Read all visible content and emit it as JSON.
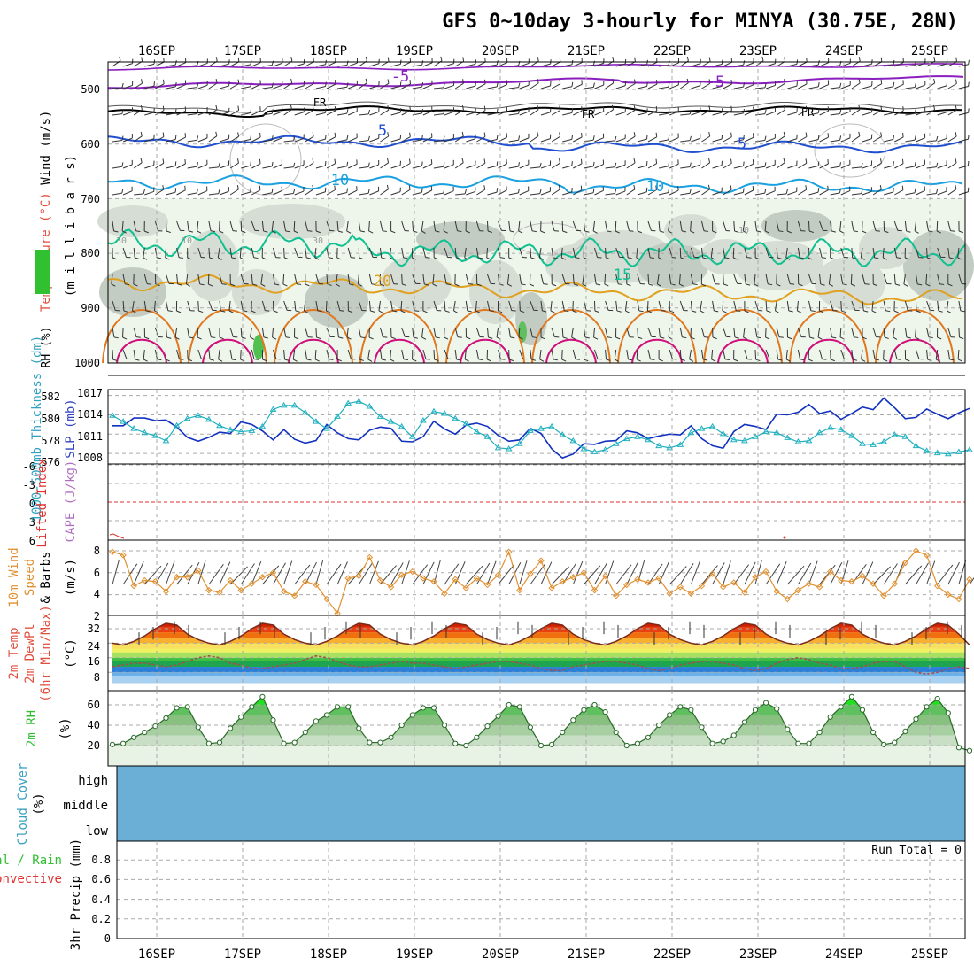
{
  "title": "GFS 0~10day 3-hourly for MINYA (30.75E, 28N)",
  "dates": [
    "16SEP",
    "17SEP",
    "18SEP",
    "19SEP",
    "20SEP",
    "21SEP",
    "22SEP",
    "23SEP",
    "24SEP",
    "25SEP"
  ],
  "colors": {
    "purple": "#8a1fbf",
    "black": "#000000",
    "blue": "#2050d0",
    "lightblue": "#1aa0e0",
    "teal": "#10c090",
    "orange20": "#e0a020",
    "orange25": "#e07820",
    "magenta": "#d0107a",
    "slp": "#1030c0",
    "thick": "#20b0c0",
    "wind10": "#e09030",
    "lifted": "#e03030",
    "cape": "#c080d0",
    "rh2": "#30c030",
    "cloud": "#6baed6"
  },
  "panels": {
    "upper": {
      "ylabel_parts": [
        "Wind (m/s)",
        "Temperature (°C)",
        "RH (%)"
      ],
      "ylabel_right": "(m i l l i b a r s)",
      "yticks": [
        "500",
        "600",
        "700",
        "800",
        "900",
        "1000"
      ],
      "contour_labels": [
        "-5",
        "-5",
        "FR",
        "FR",
        "FR",
        "5",
        "5",
        "10",
        "10",
        "15",
        "20",
        "30",
        "30",
        "30",
        "10",
        "10"
      ]
    },
    "slp": {
      "ylabel_left": "1000-500mb Thickness (dm)",
      "ylabel_right": "SLP (mb)",
      "left_ticks": [
        "582",
        "580",
        "578",
        "576"
      ],
      "right_ticks": [
        "1017",
        "1014",
        "1011",
        "1008"
      ]
    },
    "lifted": {
      "ylabel_left": "Lifted Index",
      "ylabel_right": "CAPE (J/kg)",
      "ticks": [
        "-6",
        "-3",
        "0",
        "3",
        "6"
      ]
    },
    "wind": {
      "ylabel_lines": [
        "10m Wind",
        "Speed",
        "& Barbs"
      ],
      "units": "(m/s)",
      "ticks": [
        "8",
        "6",
        "4",
        "2"
      ]
    },
    "temp": {
      "ylabel_lines": [
        "2m Temp",
        "2m DewPt",
        "(6hr Min/Max)"
      ],
      "units": "(°C)",
      "ticks": [
        "32",
        "24",
        "16",
        "8"
      ]
    },
    "rh": {
      "ylabel": "2m RH",
      "units": "(%)",
      "ticks": [
        "60",
        "40",
        "20"
      ]
    },
    "cloud": {
      "ylabel": "Cloud Cover",
      "units": "(%)",
      "levels": [
        "high",
        "middle",
        "low"
      ]
    },
    "precip": {
      "ylabel_lines": [
        "Total / Rain",
        "Convective"
      ],
      "units": "3hr Precip (mm)",
      "ticks": [
        "0.8",
        "0.6",
        "0.4",
        "0.2",
        "0"
      ],
      "run_total": "Run Total = 0"
    }
  },
  "chart_data": [
    {
      "type": "line",
      "title": "Sea Level Pressure / 1000-500mb Thickness",
      "x": "3-hourly steps from 15SEP 12Z (81 steps)",
      "series": [
        {
          "name": "SLP (mb)",
          "axis": [
            1006.5,
            1017.5
          ],
          "values": [
            1012.3,
            1012.3,
            1013.5,
            1013.5,
            1013.1,
            1013.2,
            1012.1,
            1010.5,
            1009.9,
            1010.5,
            1011.3,
            1011.1,
            1012.9,
            1012.5,
            1011.5,
            1010.1,
            1011.7,
            1010.2,
            1009.6,
            1010.0,
            1012.5,
            1011.2,
            1010.3,
            1010.1,
            1011.6,
            1012.1,
            1011.9,
            1009.9,
            1009.8,
            1010.6,
            1013.0,
            1011.8,
            1011.0,
            1012.4,
            1012.7,
            1012.2,
            1010.8,
            1009.9,
            1010.1,
            1011.9,
            1011.1,
            1008.7,
            1007.3,
            1007.9,
            1009.5,
            1009.4,
            1009.9,
            1010.0,
            1011.5,
            1011.2,
            1010.3,
            1010.7,
            1011.0,
            1010.9,
            1012.3,
            1010.3,
            1009.2,
            1008.8,
            1011.4,
            1012.5,
            1012.2,
            1011.7,
            1014.1,
            1014.0,
            1014.4,
            1015.6,
            1014.2,
            1014.6,
            1013.3,
            1014.2,
            1015.2,
            1014.8,
            1016.6,
            1015.1,
            1013.4,
            1013.6,
            1014.9,
            1014.1,
            1013.4,
            1014.3,
            1015.0
          ]
        },
        {
          "name": "1000-500mb Thickness (dm)",
          "axis": [
            575.5,
            582.5
          ],
          "values": [
            580.2,
            579.6,
            578.9,
            578.5,
            578.2,
            577.7,
            579.2,
            579.9,
            580.2,
            579.8,
            579.2,
            578.8,
            578.6,
            578.7,
            579.1,
            580.8,
            581.2,
            581.2,
            580.5,
            579.6,
            578.9,
            580.1,
            581.4,
            581.6,
            581.1,
            580.1,
            579.6,
            579.1,
            578.1,
            579.7,
            580.6,
            580.4,
            579.9,
            579.4,
            578.6,
            578.1,
            577.0,
            576.9,
            577.4,
            578.7,
            578.9,
            579.1,
            578.3,
            577.7,
            576.9,
            576.6,
            576.8,
            577.4,
            577.9,
            578.1,
            577.8,
            577.2,
            577.0,
            577.3,
            578.5,
            578.9,
            579.1,
            578.4,
            577.8,
            577.7,
            578.1,
            578.6,
            578.5,
            578.0,
            577.6,
            577.7,
            578.5,
            579.0,
            578.8,
            578.2,
            577.4,
            577.3,
            577.6,
            578.3,
            578.1,
            577.2,
            576.7,
            576.5,
            576.4,
            576.6,
            576.8
          ]
        }
      ]
    },
    {
      "type": "line",
      "title": "10m Wind Speed",
      "ylim": [
        2,
        8.5
      ],
      "series": [
        {
          "name": "10m wind (m/s)",
          "values": [
            7.9,
            7.6,
            4.8,
            5.3,
            5.2,
            4.3,
            5.6,
            5.6,
            6.2,
            4.4,
            4.2,
            5.3,
            4.4,
            5.0,
            5.6,
            6.0,
            4.3,
            3.9,
            5.2,
            4.9,
            3.6,
            2.3,
            5.5,
            5.7,
            7.4,
            5.3,
            4.7,
            5.8,
            6.1,
            5.5,
            5.2,
            4.1,
            5.4,
            4.6,
            5.5,
            4.9,
            5.8,
            7.9,
            4.4,
            5.9,
            7.1,
            4.6,
            5.2,
            5.6,
            6.0,
            4.4,
            5.7,
            3.9,
            4.9,
            5.4,
            5.1,
            5.5,
            4.1,
            4.7,
            4.1,
            4.8,
            5.9,
            4.7,
            5.1,
            4.2,
            5.6,
            6.1,
            4.3,
            3.6,
            4.4,
            5.0,
            4.7,
            6.1,
            5.3,
            5.2,
            5.7,
            5.0,
            3.9,
            5.0,
            6.9,
            8.0,
            7.6,
            4.8,
            4.0,
            3.6,
            5.4
          ]
        }
      ]
    },
    {
      "type": "area",
      "title": "2m Temperature / Dew Point",
      "ylim": [
        2,
        38
      ],
      "series": [
        {
          "name": "2m Temp (°C)",
          "values": [
            24,
            23,
            25,
            28,
            32,
            35,
            34,
            29,
            26,
            24,
            23,
            25,
            28,
            32,
            35,
            34,
            29,
            26,
            24,
            23,
            25,
            28,
            32,
            35,
            34,
            29,
            26,
            24,
            23,
            25,
            28,
            32,
            35,
            34,
            29,
            26,
            24,
            23,
            25,
            28,
            32,
            35,
            34,
            29,
            26,
            24,
            23,
            25,
            28,
            32,
            35,
            34,
            29,
            26,
            24,
            23,
            25,
            28,
            32,
            35,
            34,
            29,
            26,
            24,
            23,
            25,
            28,
            32,
            35,
            34,
            29,
            26,
            24,
            23,
            25,
            28,
            32,
            35,
            34,
            29,
            23
          ]
        },
        {
          "name": "2m DewPt (°C)",
          "values": [
            11,
            12,
            13,
            13,
            12,
            11,
            12,
            14,
            16,
            17,
            16,
            13,
            12,
            10,
            10,
            11,
            12,
            13,
            15,
            17,
            16,
            14,
            12,
            11,
            11,
            12,
            13,
            14,
            13,
            13,
            12,
            11,
            10,
            11,
            12,
            13,
            14,
            14,
            13,
            12,
            10,
            9,
            9,
            11,
            12,
            13,
            14,
            14,
            13,
            12,
            10,
            9,
            10,
            12,
            13,
            14,
            14,
            13,
            12,
            10,
            9,
            10,
            13,
            15,
            16,
            15,
            13,
            12,
            10,
            10,
            11,
            13,
            14,
            14,
            11,
            8,
            7,
            8,
            10,
            11,
            10
          ]
        }
      ]
    },
    {
      "type": "area",
      "title": "2m Relative Humidity",
      "ylim": [
        0,
        72
      ],
      "series": [
        {
          "name": "2m RH (%)",
          "values": [
            21,
            22,
            28,
            33,
            39,
            47,
            57,
            58,
            38,
            22,
            23,
            37,
            48,
            58,
            68,
            45,
            22,
            23,
            33,
            44,
            50,
            58,
            58,
            37,
            23,
            23,
            28,
            40,
            50,
            57,
            57,
            40,
            22,
            20,
            28,
            39,
            49,
            60,
            58,
            38,
            20,
            21,
            33,
            45,
            55,
            60,
            53,
            33,
            20,
            22,
            28,
            40,
            50,
            58,
            55,
            38,
            22,
            24,
            30,
            43,
            55,
            62,
            56,
            36,
            22,
            22,
            33,
            48,
            58,
            68,
            55,
            33,
            21,
            23,
            34,
            46,
            58,
            66,
            52,
            18,
            15
          ]
        }
      ]
    },
    {
      "type": "bar",
      "title": "3hr Precip",
      "ylim": [
        0,
        0.95
      ],
      "series": [
        {
          "name": "Total / Rain (mm)",
          "values": []
        },
        {
          "name": "Convective (mm)",
          "values": []
        }
      ]
    }
  ]
}
